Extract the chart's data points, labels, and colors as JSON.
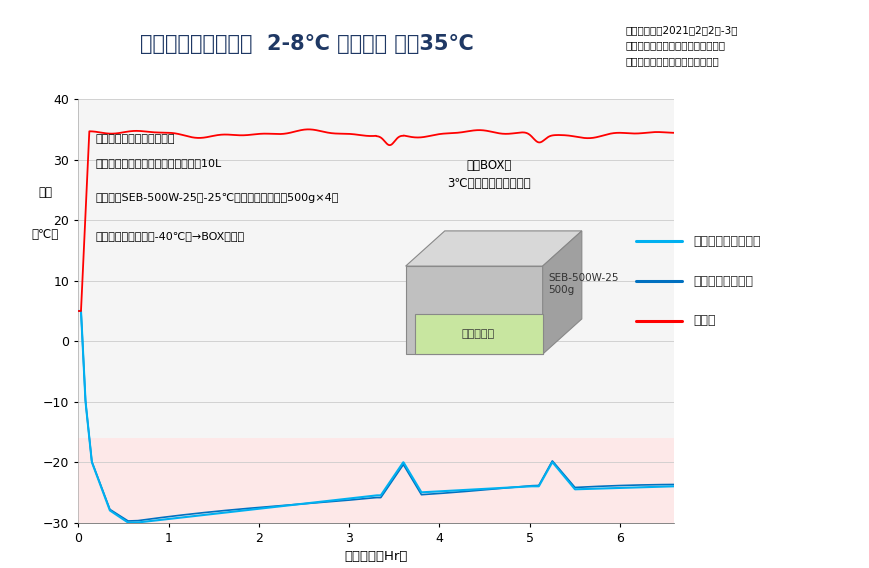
{
  "title": "定温輸送容器セット  2-8℃ 温度試験 外気35℃",
  "info_line1": "試験実施日：2021年2月2日-3日",
  "info_line2": "試験実施場所　：　株スギヤマゲン",
  "info_line3": "試験実施者　：　株スギヤマゲン",
  "xlabel": "経過時間（Hr）",
  "ylabel_line1": "温度",
  "ylabel_line2": "（℃）",
  "xlim": [
    0,
    6.6
  ],
  "ylim": [
    -30,
    40
  ],
  "yticks": [
    -30,
    -20,
    -10,
    0,
    10,
    20,
    30,
    40
  ],
  "xticks": [
    0,
    1,
    2,
    3,
    4,
    5,
    6
  ],
  "bg_color": "#f5f5f5",
  "pink_ymin": -16,
  "pink_ymax": -30,
  "pink_color": "#fde8e8",
  "cond_title": "＜温度計測試験実施条件＞",
  "cond_line1": "使用ボックス　：　発泡ボックス　10L",
  "cond_line2": "保冷剤：SEB-500W-25（-25℃融点保冷剤）　　500g×4枚",
  "cond_line3": "投入条件：冷凍庫（-40℃）→BOX内投入",
  "foam_label_line1": "発泡BOX内",
  "foam_label_line2": "3℃保冷剤セッティング",
  "seb_label": "SEB-500W-25\n500g",
  "alumi_label": "アルミ内箱",
  "legend_label1": "アルミ内箱内中心部",
  "legend_label2": "アルミ内箱内スミ",
  "legend_label3": "外気温",
  "color_center": "#00b0f0",
  "color_sumi": "#0070c0",
  "color_outer": "#ff0000",
  "title_color": "#1f3864",
  "title_bg": "#dce9f7",
  "title_border": "#5b9bd5",
  "info_bg": "#dce9f7",
  "cond_bg": "#bdd7ee",
  "foam_bg": "#ffffff",
  "legend_bg": "#ffffff"
}
